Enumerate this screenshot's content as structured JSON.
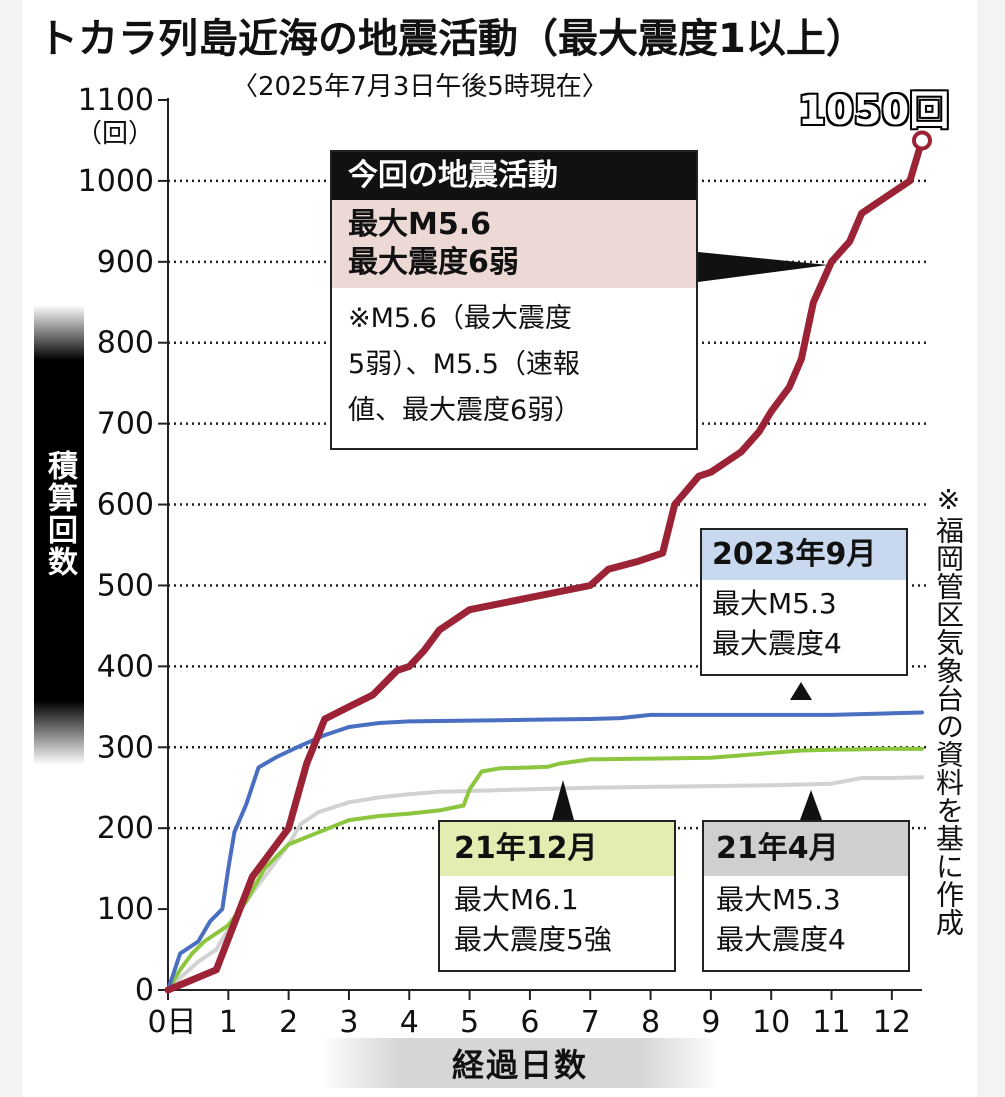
{
  "title": "トカラ列島近海の地震活動（最大震度1以上）",
  "subtitle": "〈2025年7月3日午後5時現在〉",
  "total_label": "1050回",
  "y_unit": "（回）",
  "ylabel": "積算回数",
  "xlabel": "経過日数",
  "source_note": "※福岡管区気象台の資料を基に作成",
  "colors": {
    "current": "#9b2335",
    "sep2023": "#4a6fc1",
    "dec2021": "#8cc63f",
    "apr2021": "#d2d2d2"
  },
  "boxes": {
    "current": {
      "header": "今回の地震活動",
      "line1": "最大M5.6",
      "line2": "最大震度6弱",
      "note1": "※M5.6（最大震度",
      "note2": "5弱）、M5.5（速報",
      "note3": "値、最大震度6弱）"
    },
    "sep2023": {
      "header": "2023年9月",
      "line1": "最大M5.3",
      "line2": "最大震度4"
    },
    "dec2021": {
      "header": "21年12月",
      "line1": "最大M6.1",
      "line2": "最大震度5強"
    },
    "apr2021": {
      "header": "21年4月",
      "line1": "最大M5.3",
      "line2": "最大震度4"
    }
  },
  "chart_data": {
    "type": "line",
    "title": "トカラ列島近海の地震活動（最大震度1以上）",
    "xlabel": "経過日数",
    "ylabel": "積算回数",
    "xlim": [
      0,
      12.5
    ],
    "ylim": [
      0,
      1100
    ],
    "x_ticks": [
      "0日",
      "1",
      "2",
      "3",
      "4",
      "5",
      "6",
      "7",
      "8",
      "9",
      "10",
      "11",
      "12"
    ],
    "y_ticks": [
      0,
      100,
      200,
      300,
      400,
      500,
      600,
      700,
      800,
      900,
      1000,
      1100
    ],
    "gridlines_at": [
      200,
      300,
      400,
      500,
      600,
      700,
      800,
      900,
      1000
    ],
    "series": [
      {
        "name": "21年4月",
        "x": [
          0,
          0.2,
          0.5,
          0.8,
          1.0,
          1.3,
          1.6,
          2.0,
          2.2,
          2.5,
          3.0,
          3.5,
          4.0,
          4.5,
          5.0,
          6.0,
          7.0,
          8.0,
          9.0,
          10.0,
          11.0,
          11.5,
          12.0,
          12.5
        ],
        "y": [
          0,
          15,
          35,
          50,
          75,
          110,
          140,
          180,
          205,
          220,
          232,
          238,
          242,
          245,
          246,
          248,
          250,
          251,
          252,
          253,
          255,
          262,
          262,
          263
        ]
      },
      {
        "name": "21年12月",
        "x": [
          0,
          0.2,
          0.4,
          0.6,
          1.0,
          1.3,
          1.6,
          2.0,
          2.5,
          3.0,
          3.5,
          4.0,
          4.5,
          4.9,
          5.0,
          5.2,
          5.5,
          6.0,
          6.3,
          6.5,
          7.0,
          8.0,
          9.0,
          9.5,
          10.0,
          10.5,
          11.0,
          12.0,
          12.5
        ],
        "y": [
          0,
          25,
          45,
          60,
          80,
          110,
          150,
          180,
          195,
          210,
          215,
          218,
          222,
          228,
          248,
          270,
          274,
          275,
          276,
          280,
          285,
          286,
          287,
          290,
          293,
          296,
          297,
          298,
          298
        ]
      },
      {
        "name": "2023年9月",
        "x": [
          0,
          0.2,
          0.5,
          0.7,
          0.9,
          1.0,
          1.1,
          1.3,
          1.5,
          1.8,
          2.2,
          2.6,
          3.0,
          3.5,
          4.0,
          5.0,
          6.0,
          7.0,
          7.5,
          8.0,
          9.0,
          10.0,
          11.0,
          12.0,
          12.5
        ],
        "y": [
          0,
          45,
          60,
          85,
          100,
          150,
          195,
          230,
          275,
          288,
          302,
          315,
          325,
          330,
          332,
          333,
          334,
          335,
          336,
          340,
          340,
          340,
          340,
          342,
          343
        ]
      },
      {
        "name": "今回の地震活動",
        "x": [
          0,
          0.8,
          1.4,
          2.0,
          2.3,
          2.6,
          3.0,
          3.4,
          3.8,
          4.0,
          4.25,
          4.5,
          4.7,
          5.0,
          6.0,
          7.0,
          7.3,
          7.8,
          8.2,
          8.4,
          8.8,
          9.0,
          9.5,
          9.8,
          10.0,
          10.3,
          10.5,
          10.7,
          11.0,
          11.3,
          11.5,
          12.0,
          12.3,
          12.5
        ],
        "y": [
          0,
          25,
          140,
          200,
          280,
          335,
          350,
          365,
          395,
          400,
          420,
          445,
          455,
          470,
          485,
          500,
          520,
          530,
          540,
          600,
          635,
          640,
          665,
          690,
          715,
          745,
          780,
          850,
          900,
          925,
          960,
          985,
          1000,
          1050
        ]
      }
    ]
  }
}
